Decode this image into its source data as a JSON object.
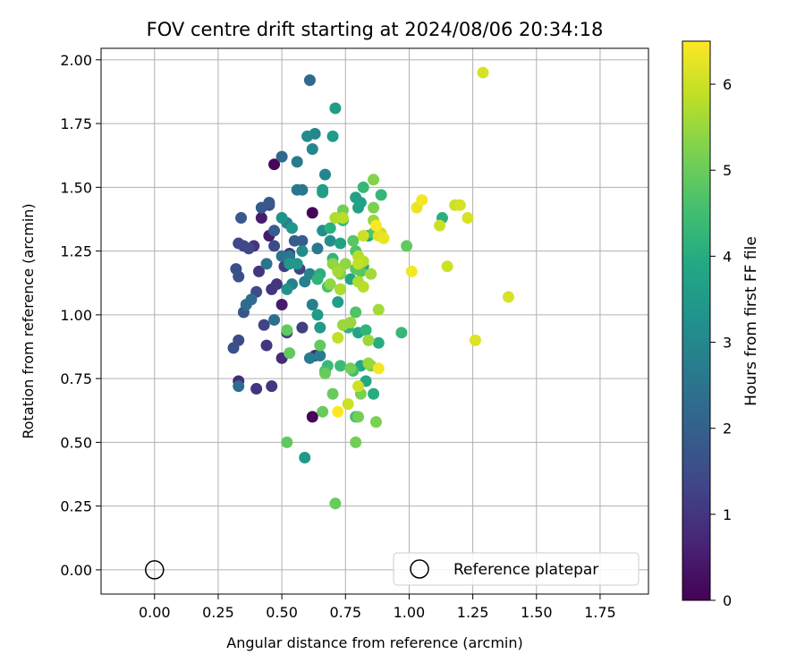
{
  "chart_data": {
    "type": "scatter",
    "title": "FOV centre drift starting at 2024/08/06 20:34:18",
    "xlabel": "Angular distance from reference (arcmin)",
    "ylabel": "Rotation from reference (arcmin)",
    "xlim": [
      -0.21,
      1.94
    ],
    "ylim": [
      -0.095,
      2.045
    ],
    "xticks": [
      "0.00",
      "0.25",
      "0.50",
      "0.75",
      "1.00",
      "1.25",
      "1.50",
      "1.75"
    ],
    "yticks": [
      "0.00",
      "0.25",
      "0.50",
      "0.75",
      "1.00",
      "1.25",
      "1.50",
      "1.75",
      "2.00"
    ],
    "grid": true,
    "legend": {
      "placement": "lower-right",
      "entries": [
        {
          "label": "Reference platepar",
          "marker": "open-circle"
        }
      ]
    },
    "reference_point": {
      "x": 0.0,
      "y": 0.0
    },
    "colorbar": {
      "label": "Hours from first FF file",
      "colormap": "viridis",
      "range": [
        0,
        6.5
      ],
      "ticks": [
        "0",
        "1",
        "2",
        "3",
        "4",
        "5",
        "6"
      ]
    },
    "series": [
      {
        "color_by": "hours",
        "points": [
          [
            0.47,
            1.59,
            0.1
          ],
          [
            0.62,
            1.4,
            0.1
          ],
          [
            0.62,
            0.6,
            0.1
          ],
          [
            0.45,
            1.31,
            0.5
          ],
          [
            0.5,
            1.04,
            0.5
          ],
          [
            0.42,
            1.38,
            0.5
          ],
          [
            0.33,
            0.74,
            0.8
          ],
          [
            0.5,
            0.83,
            0.8
          ],
          [
            0.63,
            0.84,
            0.8
          ],
          [
            0.4,
            0.71,
            1.0
          ],
          [
            0.46,
            0.72,
            1.0
          ],
          [
            0.44,
            0.88,
            1.0
          ],
          [
            0.46,
            1.1,
            1.0
          ],
          [
            0.48,
            1.12,
            1.0
          ],
          [
            0.53,
            1.24,
            1.0
          ],
          [
            0.39,
            1.27,
            1.0
          ],
          [
            0.41,
            1.17,
            1.0
          ],
          [
            0.52,
            0.93,
            1.2
          ],
          [
            0.58,
            0.95,
            1.2
          ],
          [
            0.51,
            1.19,
            1.2
          ],
          [
            0.43,
            0.96,
            1.3
          ],
          [
            0.57,
            1.18,
            1.3
          ],
          [
            0.35,
            1.27,
            1.4
          ],
          [
            0.37,
            1.26,
            1.4
          ],
          [
            0.33,
            1.28,
            1.4
          ],
          [
            0.4,
            1.09,
            1.5
          ],
          [
            0.47,
            1.27,
            1.5
          ],
          [
            0.45,
            1.43,
            1.5
          ],
          [
            0.33,
            0.9,
            1.5
          ],
          [
            0.31,
            0.87,
            1.6
          ],
          [
            0.32,
            1.18,
            1.6
          ],
          [
            0.33,
            1.15,
            1.6
          ],
          [
            0.35,
            1.01,
            1.7
          ],
          [
            0.34,
            1.38,
            1.8
          ],
          [
            0.42,
            1.42,
            1.8
          ],
          [
            0.45,
            1.44,
            1.8
          ],
          [
            0.47,
            1.33,
            1.9
          ],
          [
            0.55,
            1.29,
            1.9
          ],
          [
            0.58,
            1.29,
            1.9
          ],
          [
            0.5,
            1.62,
            2.2
          ],
          [
            0.61,
            1.92,
            2.2
          ],
          [
            0.33,
            0.72,
            2.3
          ],
          [
            0.36,
            1.04,
            2.3
          ],
          [
            0.38,
            1.06,
            2.3
          ],
          [
            0.47,
            0.98,
            2.4
          ],
          [
            0.44,
            1.2,
            2.5
          ],
          [
            0.5,
            1.23,
            2.5
          ],
          [
            0.53,
            1.23,
            2.6
          ],
          [
            0.56,
            1.49,
            2.6
          ],
          [
            0.58,
            1.49,
            2.6
          ],
          [
            0.64,
            1.26,
            2.6
          ],
          [
            0.56,
            1.6,
            2.7
          ],
          [
            0.61,
            0.83,
            2.7
          ],
          [
            0.65,
            0.84,
            2.7
          ],
          [
            0.62,
            1.04,
            2.8
          ],
          [
            0.54,
            1.12,
            2.8
          ],
          [
            0.59,
            1.13,
            2.8
          ],
          [
            0.61,
            1.16,
            2.9
          ],
          [
            0.52,
            1.36,
            2.9
          ],
          [
            0.67,
            1.55,
            2.9
          ],
          [
            0.62,
            1.65,
            3.0
          ],
          [
            0.63,
            1.71,
            3.0
          ],
          [
            0.6,
            1.7,
            3.1
          ],
          [
            0.58,
            1.25,
            3.1
          ],
          [
            0.66,
            1.33,
            3.2
          ],
          [
            0.69,
            1.29,
            3.2
          ],
          [
            0.5,
            1.38,
            3.3
          ],
          [
            0.52,
            1.1,
            3.3
          ],
          [
            0.53,
            1.2,
            3.4
          ],
          [
            0.54,
            1.34,
            3.4
          ],
          [
            0.56,
            1.2,
            3.4
          ],
          [
            0.65,
            0.95,
            3.5
          ],
          [
            0.64,
            1.0,
            3.5
          ],
          [
            0.59,
            0.44,
            3.5
          ],
          [
            0.7,
            1.7,
            3.5
          ],
          [
            0.66,
            1.49,
            3.6
          ],
          [
            0.66,
            1.48,
            3.6
          ],
          [
            0.71,
            1.81,
            3.6
          ],
          [
            0.72,
            1.05,
            3.6
          ],
          [
            0.73,
            1.28,
            3.7
          ],
          [
            0.79,
            1.46,
            3.7
          ],
          [
            0.8,
            1.42,
            3.7
          ],
          [
            0.81,
            1.44,
            3.7
          ],
          [
            0.77,
            1.14,
            3.8
          ],
          [
            0.82,
            1.19,
            3.8
          ],
          [
            0.8,
            0.93,
            3.8
          ],
          [
            0.81,
            0.8,
            3.9
          ],
          [
            0.83,
            0.74,
            3.9
          ],
          [
            0.84,
            1.31,
            3.9
          ],
          [
            0.86,
            0.69,
            4.0
          ],
          [
            0.88,
            0.89,
            4.0
          ],
          [
            1.13,
            1.38,
            4.1
          ],
          [
            0.65,
            1.16,
            4.1
          ],
          [
            0.69,
            1.34,
            4.1
          ],
          [
            0.64,
            1.14,
            4.2
          ],
          [
            0.7,
            1.22,
            4.2
          ],
          [
            0.76,
            0.95,
            4.2
          ],
          [
            0.83,
            0.94,
            4.2
          ],
          [
            0.89,
            1.47,
            4.3
          ],
          [
            0.97,
            0.93,
            4.3
          ],
          [
            0.82,
            1.5,
            4.3
          ],
          [
            0.68,
            0.8,
            4.4
          ],
          [
            0.73,
            0.8,
            4.4
          ],
          [
            0.74,
            1.37,
            4.4
          ],
          [
            0.67,
            0.78,
            4.5
          ],
          [
            0.78,
            0.78,
            4.5
          ],
          [
            0.79,
            0.6,
            4.5
          ],
          [
            0.73,
            1.1,
            4.6
          ],
          [
            0.68,
            1.11,
            4.6
          ],
          [
            0.79,
            1.01,
            4.7
          ],
          [
            0.86,
            1.32,
            4.7
          ],
          [
            0.79,
            1.25,
            4.7
          ],
          [
            0.78,
            1.29,
            4.8
          ],
          [
            0.79,
            1.18,
            4.8
          ],
          [
            0.81,
            1.17,
            4.8
          ],
          [
            0.99,
            1.27,
            4.9
          ],
          [
            0.52,
            0.5,
            4.9
          ],
          [
            0.53,
            0.85,
            4.9
          ],
          [
            0.52,
            0.94,
            4.9
          ],
          [
            0.65,
            0.88,
            4.9
          ],
          [
            0.66,
            0.62,
            5.0
          ],
          [
            0.67,
            0.77,
            5.0
          ],
          [
            0.7,
            0.69,
            5.0
          ],
          [
            0.71,
            0.26,
            5.0
          ],
          [
            0.74,
            1.41,
            5.1
          ],
          [
            0.77,
            0.79,
            5.1
          ],
          [
            0.79,
            0.5,
            5.1
          ],
          [
            0.8,
            0.6,
            5.1
          ],
          [
            0.81,
            0.69,
            5.2
          ],
          [
            0.85,
            0.8,
            5.2
          ],
          [
            0.86,
            1.42,
            5.2
          ],
          [
            0.87,
            0.58,
            5.2
          ],
          [
            0.86,
            1.53,
            5.3
          ],
          [
            0.73,
            1.16,
            5.3
          ],
          [
            0.75,
            1.2,
            5.4
          ],
          [
            0.72,
            1.18,
            5.4
          ],
          [
            0.7,
            1.2,
            5.4
          ],
          [
            0.69,
            1.12,
            5.4
          ],
          [
            0.74,
            0.96,
            5.5
          ],
          [
            0.77,
            0.97,
            5.5
          ],
          [
            0.84,
            0.81,
            5.5
          ],
          [
            0.84,
            0.9,
            5.5
          ],
          [
            0.86,
            1.37,
            5.5
          ],
          [
            0.85,
            1.16,
            5.6
          ],
          [
            0.88,
            1.02,
            5.6
          ],
          [
            0.72,
            1.17,
            5.6
          ],
          [
            0.71,
            1.38,
            5.7
          ],
          [
            0.73,
            1.1,
            5.7
          ],
          [
            0.8,
            1.13,
            5.7
          ],
          [
            0.82,
            1.11,
            5.8
          ],
          [
            0.82,
            1.21,
            5.8
          ],
          [
            0.74,
            1.38,
            5.8
          ],
          [
            0.8,
            1.23,
            5.8
          ],
          [
            0.8,
            1.2,
            5.9
          ],
          [
            0.72,
            0.91,
            5.9
          ],
          [
            0.76,
            0.65,
            6.0
          ],
          [
            0.8,
            0.72,
            6.0
          ],
          [
            0.82,
            1.31,
            6.0
          ],
          [
            0.89,
            1.32,
            6.0
          ],
          [
            1.12,
            1.35,
            6.0
          ],
          [
            1.15,
            1.19,
            6.0
          ],
          [
            1.18,
            1.43,
            6.0
          ],
          [
            1.2,
            1.43,
            6.1
          ],
          [
            1.23,
            1.38,
            6.1
          ],
          [
            1.29,
            1.95,
            6.1
          ],
          [
            1.39,
            1.07,
            6.1
          ],
          [
            1.26,
            0.9,
            6.2
          ],
          [
            0.88,
            1.31,
            6.2
          ],
          [
            0.9,
            1.3,
            6.3
          ],
          [
            1.03,
            1.42,
            6.3
          ],
          [
            1.05,
            1.45,
            6.4
          ],
          [
            1.01,
            1.17,
            6.4
          ],
          [
            0.88,
            0.79,
            6.4
          ],
          [
            0.72,
            0.62,
            6.5
          ],
          [
            0.87,
            1.35,
            6.5
          ]
        ]
      }
    ]
  }
}
